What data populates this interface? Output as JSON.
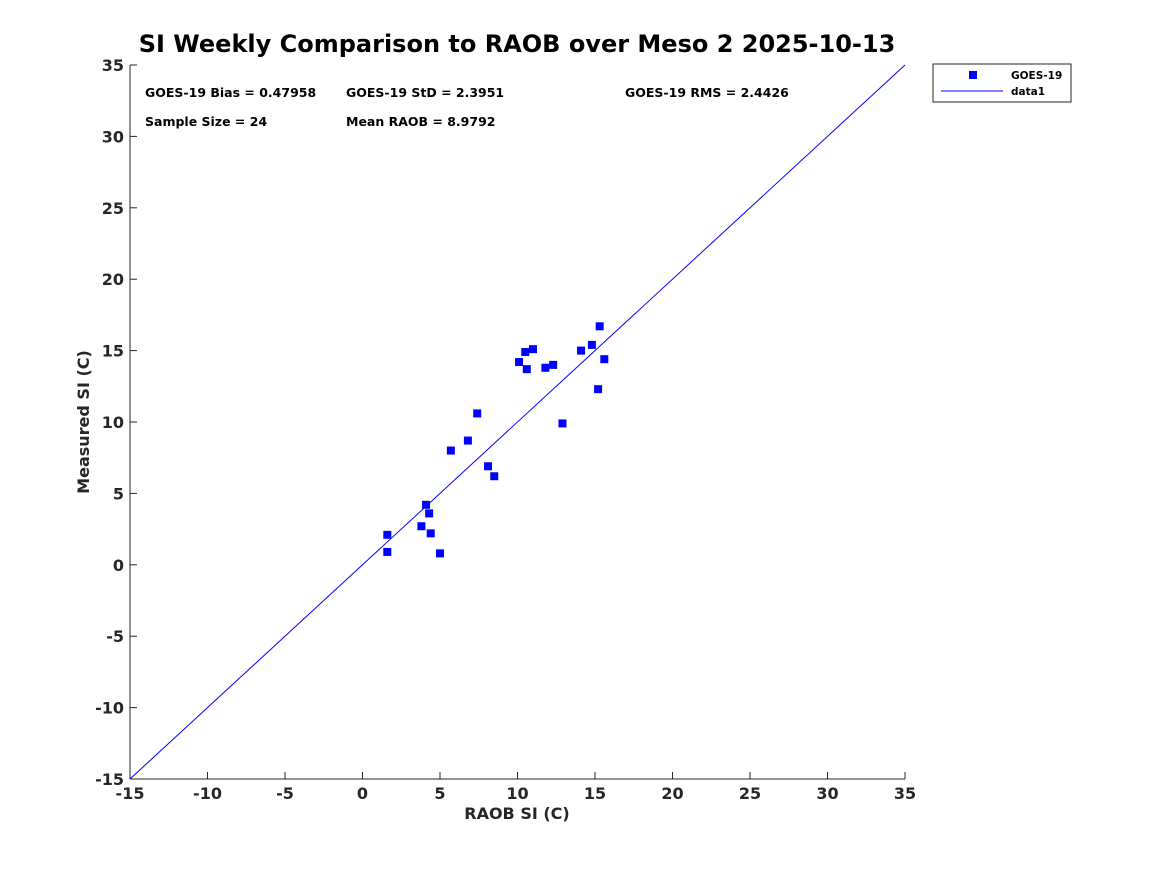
{
  "chart_data": {
    "type": "scatter",
    "title": "SI Weekly Comparison to RAOB over Meso 2 2025-10-13",
    "xlabel": "RAOB SI (C)",
    "ylabel": "Measured SI (C)",
    "xlim": [
      -15,
      35
    ],
    "ylim": [
      -15,
      35
    ],
    "xticks": [
      -15,
      -10,
      -5,
      0,
      5,
      10,
      15,
      20,
      25,
      30,
      35
    ],
    "yticks": [
      -15,
      -10,
      -5,
      0,
      5,
      10,
      15,
      20,
      25,
      30,
      35
    ],
    "grid": false,
    "legend_position": "outside-top-right",
    "series": [
      {
        "name": "GOES-19",
        "kind": "scatter",
        "marker": "square",
        "color": "#0000ff",
        "points": [
          [
            1.6,
            2.1
          ],
          [
            1.6,
            0.9
          ],
          [
            3.8,
            2.7
          ],
          [
            4.1,
            4.2
          ],
          [
            4.3,
            3.6
          ],
          [
            4.4,
            2.2
          ],
          [
            5.0,
            0.8
          ],
          [
            5.7,
            8.0
          ],
          [
            6.8,
            8.7
          ],
          [
            7.4,
            10.6
          ],
          [
            8.1,
            6.9
          ],
          [
            8.5,
            6.2
          ],
          [
            10.1,
            14.2
          ],
          [
            10.5,
            14.9
          ],
          [
            10.6,
            13.7
          ],
          [
            11.0,
            15.1
          ],
          [
            11.8,
            13.8
          ],
          [
            12.3,
            14.0
          ],
          [
            12.9,
            9.9
          ],
          [
            14.1,
            15.0
          ],
          [
            14.8,
            15.4
          ],
          [
            15.2,
            12.3
          ],
          [
            15.3,
            16.7
          ],
          [
            15.6,
            14.4
          ]
        ]
      },
      {
        "name": "data1",
        "kind": "line",
        "color": "#0000ff",
        "points": [
          [
            -15,
            -15
          ],
          [
            35,
            35
          ]
        ]
      }
    ],
    "annotations": [
      "GOES-19 Bias = 0.47958",
      "GOES-19 StD = 2.3951",
      "GOES-19 RMS = 2.4426",
      "Sample Size = 24",
      "Mean RAOB = 8.9792"
    ]
  }
}
